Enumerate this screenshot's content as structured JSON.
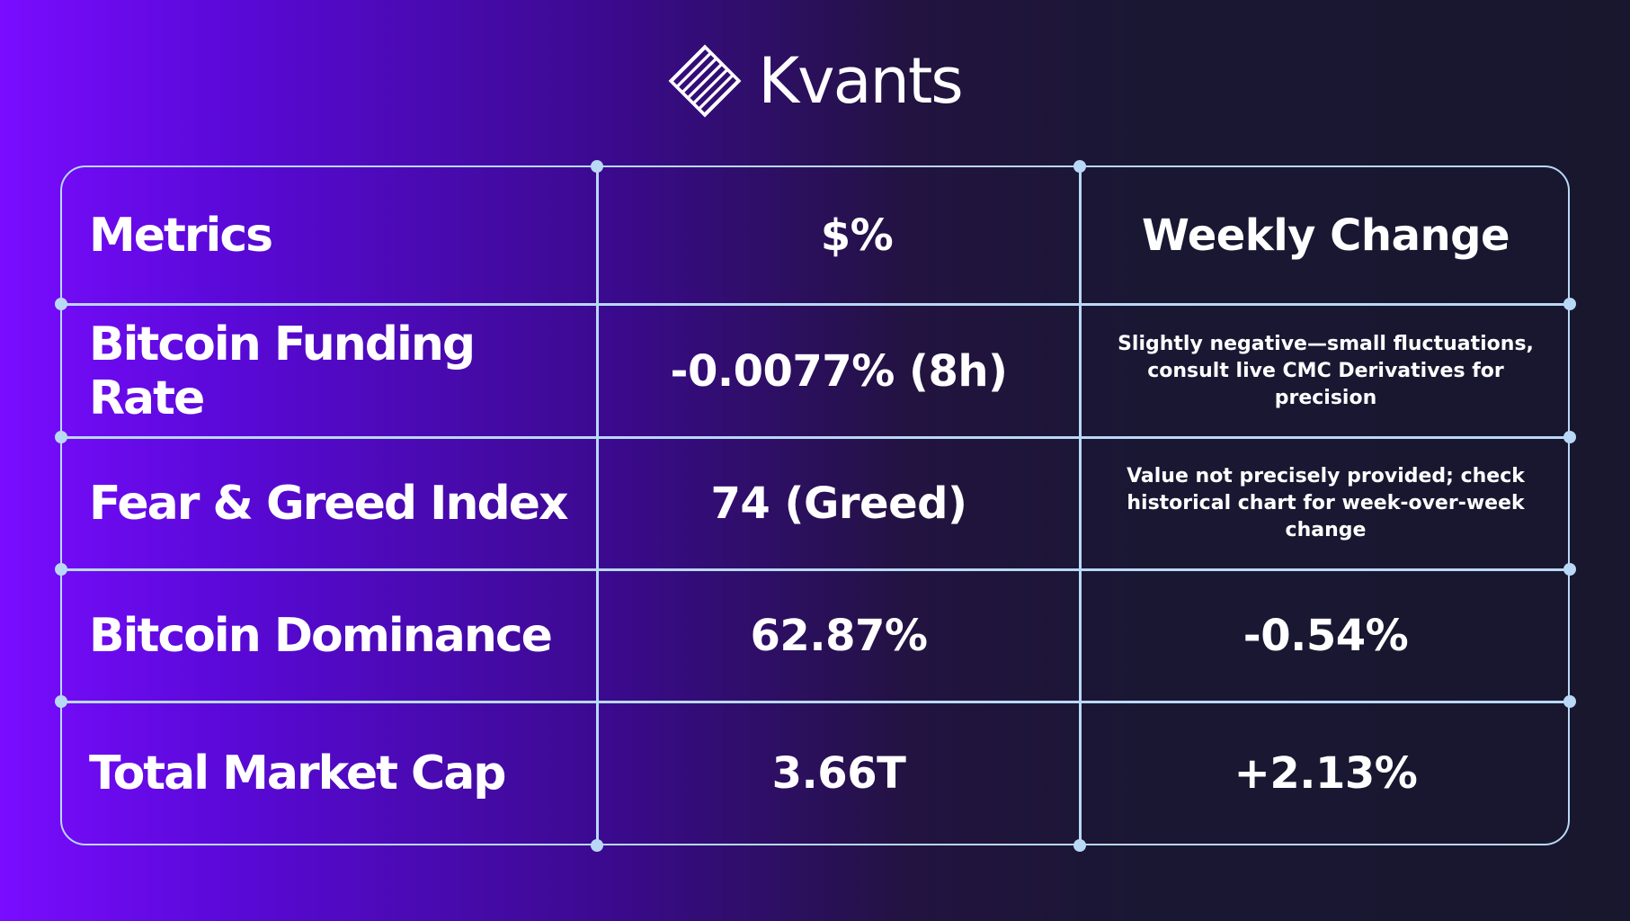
{
  "brand": {
    "name": "Kvants",
    "logo_icon": "striped-diamond-icon"
  },
  "table": {
    "headers": [
      "Metrics",
      "$%",
      "Weekly Change"
    ],
    "rows": [
      {
        "metric": "Bitcoin Funding Rate",
        "value": "-0.0077% (8h)",
        "change": "Slightly negative—small fluctuations, consult live CMC Derivatives for precision"
      },
      {
        "metric": "Fear & Greed Index",
        "value": "74 (Greed)",
        "change": "Value not precisely provided; check historical chart for week-over-week change"
      },
      {
        "metric": "Bitcoin Dominance",
        "value": "62.87%",
        "change": "-0.54%"
      },
      {
        "metric": "Total Market Cap",
        "value": "3.66T",
        "change": "+2.13%"
      }
    ]
  },
  "colors": {
    "grid_line": "#b9d8f5",
    "text": "#ffffff",
    "gradient_start": "#7a0cff",
    "gradient_end": "#18172e"
  }
}
